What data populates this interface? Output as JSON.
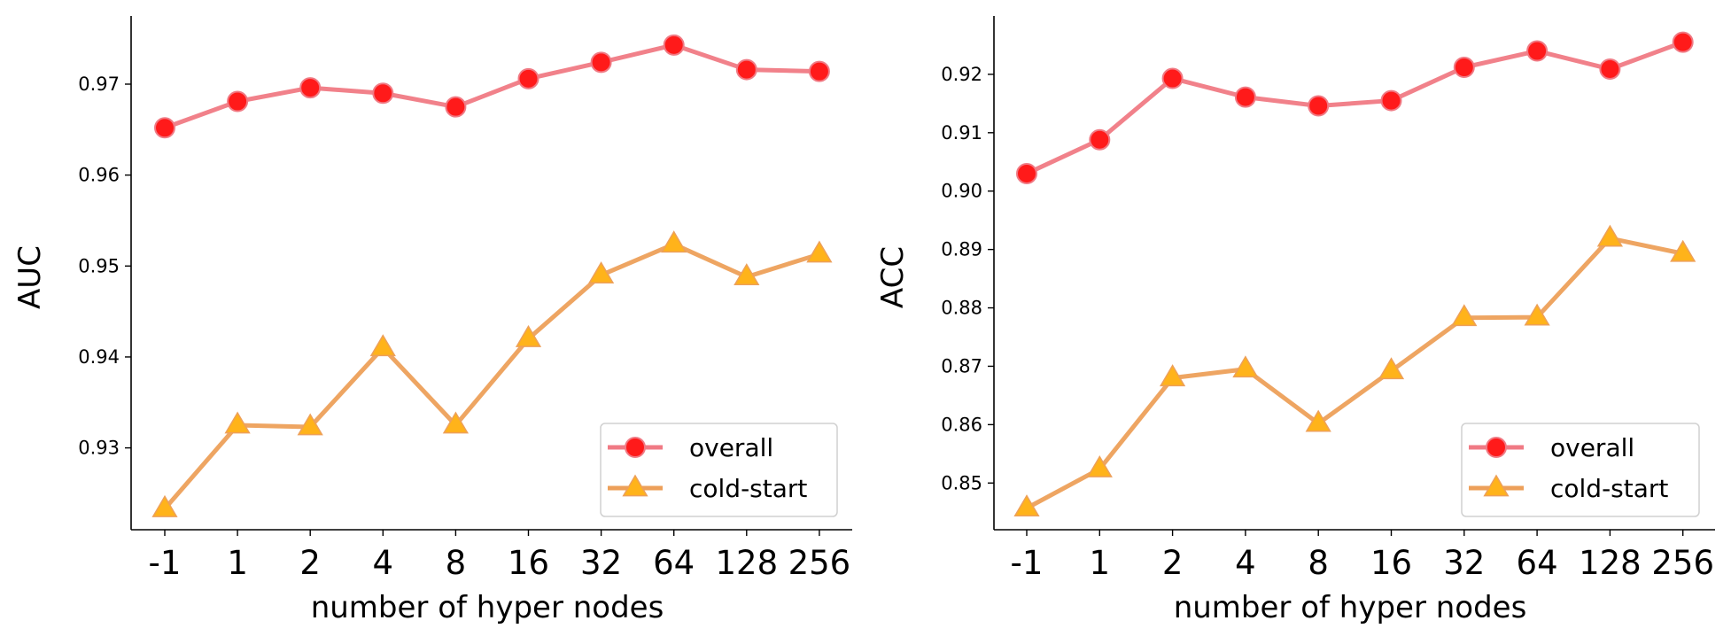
{
  "chart_data": [
    {
      "type": "line",
      "categories": [
        "-1",
        "1",
        "2",
        "4",
        "8",
        "16",
        "32",
        "64",
        "128",
        "256"
      ],
      "xlabel": "number of hyper nodes",
      "ylabel": "AUC",
      "ylim": [
        0.921,
        0.9775
      ],
      "yticks": [
        0.93,
        0.94,
        0.95,
        0.96,
        0.97
      ],
      "ytick_labels": [
        "0.93",
        "0.94",
        "0.95",
        "0.96",
        "0.97"
      ],
      "grid": false,
      "legend": "bottom-right",
      "series": [
        {
          "name": "overall",
          "marker": "circle",
          "line_color": "#f07a84",
          "marker_color": "#ff1a1a",
          "values": [
            0.9652,
            0.9681,
            0.9696,
            0.969,
            0.9675,
            0.9706,
            0.9724,
            0.9743,
            0.9716,
            0.9714
          ]
        },
        {
          "name": "cold-start",
          "marker": "triangle",
          "line_color": "#eda05a",
          "marker_color": "#ffb31a",
          "values": [
            0.9233,
            0.9325,
            0.9323,
            0.941,
            0.9325,
            0.942,
            0.949,
            0.9524,
            0.9488,
            0.9513
          ]
        }
      ]
    },
    {
      "type": "line",
      "categories": [
        "-1",
        "1",
        "2",
        "4",
        "8",
        "16",
        "32",
        "64",
        "128",
        "256"
      ],
      "xlabel": "number of hyper nodes",
      "ylabel": "ACC",
      "ylim": [
        0.842,
        0.93
      ],
      "yticks": [
        0.85,
        0.86,
        0.87,
        0.88,
        0.89,
        0.9,
        0.91,
        0.92
      ],
      "ytick_labels": [
        "0.85",
        "0.86",
        "0.87",
        "0.88",
        "0.89",
        "0.90",
        "0.91",
        "0.92"
      ],
      "grid": false,
      "legend": "bottom-right",
      "series": [
        {
          "name": "overall",
          "marker": "circle",
          "line_color": "#f07a84",
          "marker_color": "#ff1a1a",
          "values": [
            0.903,
            0.9088,
            0.9193,
            0.9161,
            0.9146,
            0.9155,
            0.9212,
            0.924,
            0.9209,
            0.9255
          ]
        },
        {
          "name": "cold-start",
          "marker": "triangle",
          "line_color": "#eda05a",
          "marker_color": "#ffb31a",
          "values": [
            0.8457,
            0.8524,
            0.868,
            0.8695,
            0.8602,
            0.8692,
            0.8783,
            0.8784,
            0.8919,
            0.8893
          ]
        }
      ]
    }
  ]
}
